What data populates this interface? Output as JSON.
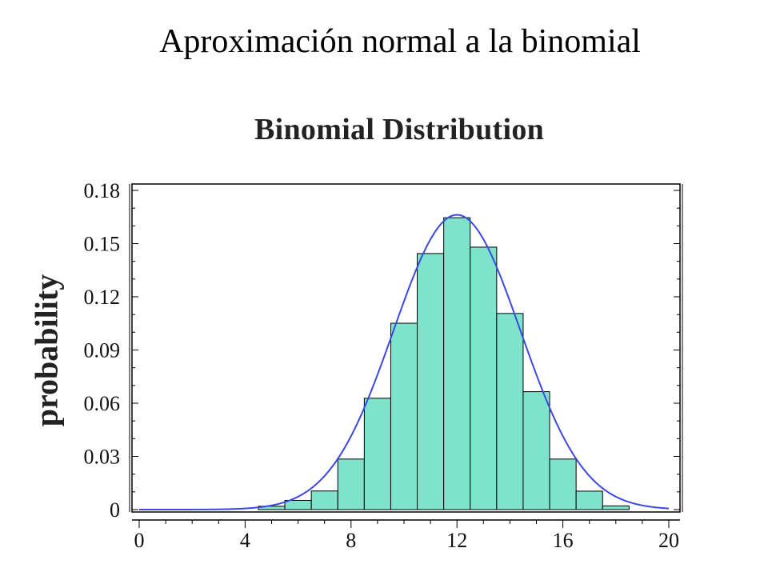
{
  "slide": {
    "title": "Aproximación normal a la binomial"
  },
  "chart_data": {
    "type": "bar",
    "title": "Binomial Distribution",
    "xlabel": "",
    "ylabel": "probability",
    "xlim": [
      0,
      20
    ],
    "ylim": [
      0,
      0.18
    ],
    "x_ticks": [
      "0",
      "4",
      "8",
      "12",
      "16",
      "20"
    ],
    "y_ticks": [
      "0",
      "0.03",
      "0.06",
      "0.09",
      "0.12",
      "0.15",
      "0.18"
    ],
    "categories": [
      5,
      6,
      7,
      8,
      9,
      10,
      11,
      12,
      13,
      14,
      15,
      16,
      17,
      18
    ],
    "series": [
      {
        "values": [
          0.0019,
          0.0052,
          0.0105,
          0.0285,
          0.0628,
          0.1051,
          0.1444,
          0.1646,
          0.148,
          0.1106,
          0.0665,
          0.0285,
          0.0104,
          0.0021
        ]
      }
    ],
    "curve": {
      "type": "normal",
      "mean": 12,
      "sd": 2.4
    },
    "bar_color": "#7fe3cc",
    "curve_color": "#3b49e0",
    "grid": false
  }
}
